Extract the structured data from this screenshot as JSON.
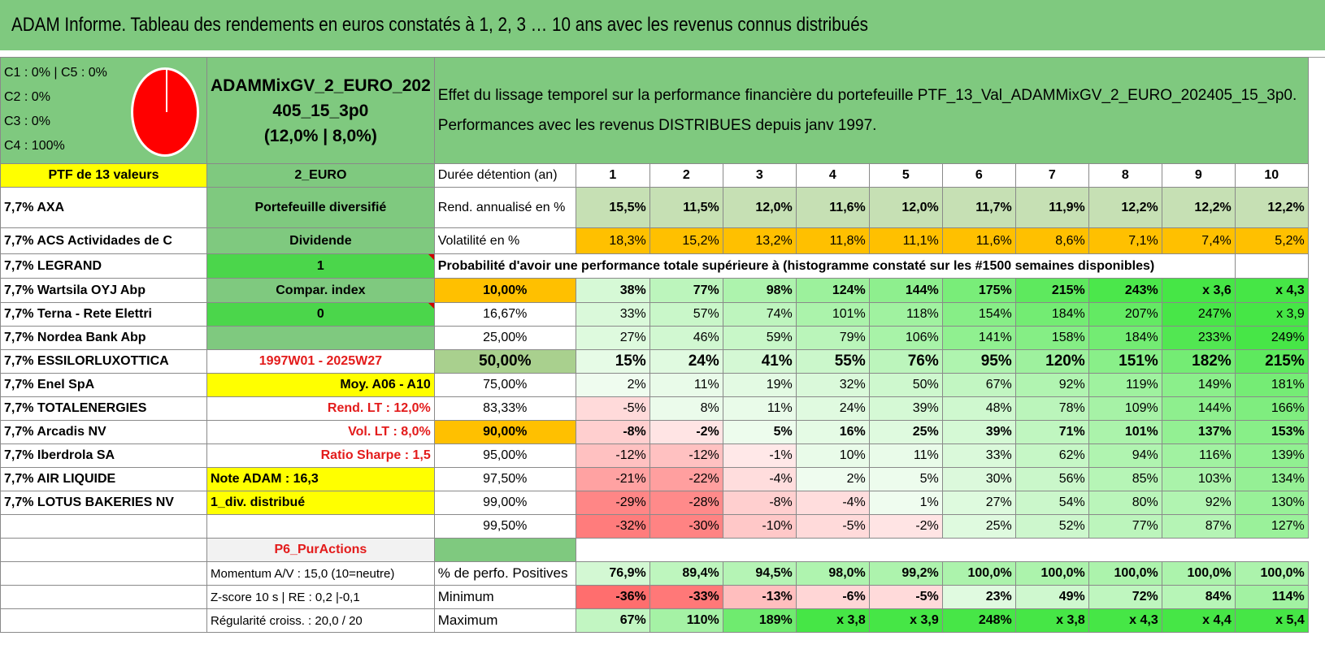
{
  "title": "ADAM Informe. Tableau des rendements en euros constatés à 1, 2, 3 … 10 ans avec les revenus connus distribués",
  "weights": [
    "C1 : 0% | C5 : 0%",
    "C2 : 0%",
    "C3 : 0%",
    "C4 : 100%"
  ],
  "pie_data": {
    "slices": [
      {
        "label": "C4",
        "value": 100,
        "color": "#ff0000"
      }
    ]
  },
  "portfolio": {
    "name_line1": "ADAMMixGV_2_EURO_202",
    "name_line2": "405_15_3p0",
    "name_line3": "(12,0% | 8,0%)"
  },
  "description": {
    "line1": "Effet du lissage temporel sur la performance financière du portefeuille PTF_13_Val_ADAMMixGV_2_EURO_202405_15_3p0.",
    "line2": "Performances avec les revenus DISTRIBUES depuis janv 1997."
  },
  "header": {
    "ptf_label": "PTF de 13 valeurs",
    "currency": "2_EURO",
    "duration_label": "Durée détention (an)",
    "years": [
      "1",
      "2",
      "3",
      "4",
      "5",
      "6",
      "7",
      "8",
      "9",
      "10"
    ]
  },
  "holdings": [
    "7,7% AXA",
    "7,7% ACS Actividades de C",
    "7,7% LEGRAND",
    "7,7% Wartsila OYJ Abp",
    "7,7% Terna - Rete Elettri",
    "7,7% Nordea Bank Abp",
    "7,7% ESSILORLUXOTTICA",
    "7,7% Enel SpA",
    "7,7% TOTALENERGIES",
    "7,7% Arcadis NV",
    "7,7% Iberdrola SA",
    "7,7% AIR LIQUIDE",
    "7,7% LOTUS BAKERIES NV",
    ""
  ],
  "info": [
    "Portefeuille diversifié",
    "Dividende",
    "1",
    "Compar. index",
    "0",
    "",
    "1997W01 - 2025W27",
    "Moy. A06 - A10",
    "Rend. LT : 12,0%",
    "Vol. LT : 8,0%",
    "Ratio Sharpe : 1,5",
    "Note ADAM : 16,3",
    "1_div. distribué",
    ""
  ],
  "rend": {
    "label": "Rend. annualisé en %",
    "values": [
      "15,5%",
      "11,5%",
      "12,0%",
      "11,6%",
      "12,0%",
      "11,7%",
      "11,9%",
      "12,2%",
      "12,2%",
      "12,2%"
    ]
  },
  "vol": {
    "label": "Volatilité en %",
    "values": [
      "18,3%",
      "15,2%",
      "13,2%",
      "11,8%",
      "11,1%",
      "11,6%",
      "8,6%",
      "7,1%",
      "7,4%",
      "5,2%"
    ]
  },
  "prob_label": "Probabilité d'avoir une performance totale supérieure à (histogramme constaté sur les #1500 semaines disponibles)",
  "prob_rows": [
    {
      "p": "10,00%",
      "v": [
        "38%",
        "77%",
        "98%",
        "124%",
        "144%",
        "175%",
        "215%",
        "243%",
        "x 3,6",
        "x 4,3"
      ]
    },
    {
      "p": "16,67%",
      "v": [
        "33%",
        "57%",
        "74%",
        "101%",
        "118%",
        "154%",
        "184%",
        "207%",
        "247%",
        "x 3,9"
      ]
    },
    {
      "p": "25,00%",
      "v": [
        "27%",
        "46%",
        "59%",
        "79%",
        "106%",
        "141%",
        "158%",
        "184%",
        "233%",
        "249%"
      ]
    },
    {
      "p": "50,00%",
      "v": [
        "15%",
        "24%",
        "41%",
        "55%",
        "76%",
        "95%",
        "120%",
        "151%",
        "182%",
        "215%"
      ]
    },
    {
      "p": "75,00%",
      "v": [
        "2%",
        "11%",
        "19%",
        "32%",
        "50%",
        "67%",
        "92%",
        "119%",
        "149%",
        "181%"
      ]
    },
    {
      "p": "83,33%",
      "v": [
        "-5%",
        "8%",
        "11%",
        "24%",
        "39%",
        "48%",
        "78%",
        "109%",
        "144%",
        "166%"
      ]
    },
    {
      "p": "90,00%",
      "v": [
        "-8%",
        "-2%",
        "5%",
        "16%",
        "25%",
        "39%",
        "71%",
        "101%",
        "137%",
        "153%"
      ]
    },
    {
      "p": "95,00%",
      "v": [
        "-12%",
        "-12%",
        "-1%",
        "10%",
        "11%",
        "33%",
        "62%",
        "94%",
        "116%",
        "139%"
      ]
    },
    {
      "p": "97,50%",
      "v": [
        "-21%",
        "-22%",
        "-4%",
        "2%",
        "5%",
        "30%",
        "56%",
        "85%",
        "103%",
        "134%"
      ]
    },
    {
      "p": "99,00%",
      "v": [
        "-29%",
        "-28%",
        "-8%",
        "-4%",
        "1%",
        "27%",
        "54%",
        "80%",
        "92%",
        "130%"
      ]
    },
    {
      "p": "99,50%",
      "v": [
        "-32%",
        "-30%",
        "-10%",
        "-5%",
        "-2%",
        "25%",
        "52%",
        "77%",
        "87%",
        "127%"
      ]
    }
  ],
  "p6_label": "P6_PurActions",
  "footer": [
    {
      "info": "Momentum A/V : 15,0 (10=neutre)",
      "label": "% de perfo. Positives",
      "v": [
        "76,9%",
        "89,4%",
        "94,5%",
        "98,0%",
        "99,2%",
        "100,0%",
        "100,0%",
        "100,0%",
        "100,0%",
        "100,0%"
      ]
    },
    {
      "info": "Z-score 10 s | RE : 0,2 |-0,1",
      "label": "Minimum",
      "v": [
        "-36%",
        "-33%",
        "-13%",
        "-6%",
        "-5%",
        "23%",
        "49%",
        "72%",
        "84%",
        "114%"
      ]
    },
    {
      "info": "Régularité croiss. : 20,0 / 20",
      "label": "Maximum",
      "v": [
        "67%",
        "110%",
        "189%",
        "x 3,8",
        "x 3,9",
        "248%",
        "x 3,8",
        "x 4,3",
        "x 4,4",
        "x 5,4"
      ]
    }
  ],
  "colors": {
    "header_green": "#7fc97f",
    "bright_green": "#4bd64b",
    "yellow": "#ffff00",
    "orange": "#ffc000",
    "light_green": "#c6e0b4",
    "red_text": "#e31b1b"
  }
}
